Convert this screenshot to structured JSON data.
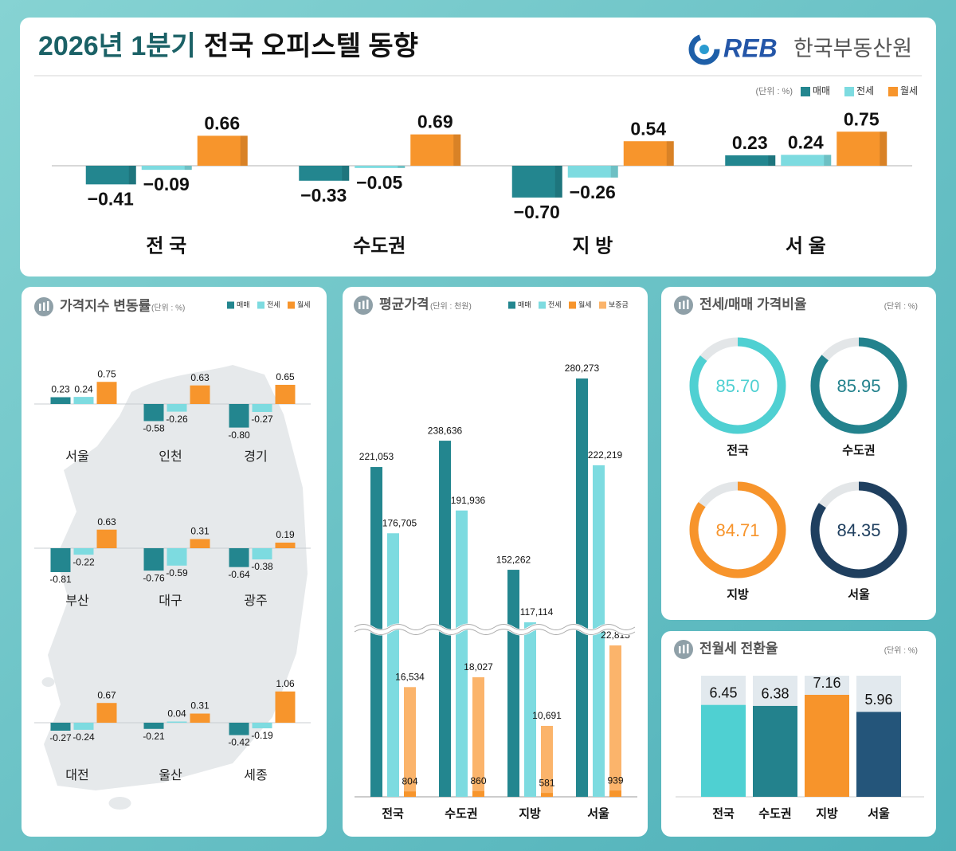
{
  "header": {
    "title_year": "2026년 1분기",
    "title": "전국 오피스텔 동향",
    "logo": "REB",
    "org": "한국부동산원"
  },
  "chart_data": [
    {
      "type": "bar",
      "unit": "(단위 : %)",
      "categories": [
        "전 국",
        "수도권",
        "지 방",
        "서 울"
      ],
      "series": [
        {
          "name": "매매",
          "color": "#23868f",
          "values": [
            -0.41,
            -0.33,
            -0.7,
            0.23
          ],
          "value_labels": [
            "−0.41",
            "−0.33",
            "−0.70",
            "0.23"
          ]
        },
        {
          "name": "전세",
          "color": "#7ddbe0",
          "values": [
            -0.09,
            -0.05,
            -0.26,
            0.24
          ],
          "value_labels": [
            "−0.09",
            "−0.05",
            "−0.26",
            "0.24"
          ]
        },
        {
          "name": "월세",
          "color": "#f7952c",
          "values": [
            0.66,
            0.69,
            0.54,
            0.75
          ],
          "value_labels": [
            "0.66",
            "0.69",
            "0.54",
            "0.75"
          ]
        }
      ]
    },
    {
      "type": "bar-grid",
      "title": "가격지수 변동률",
      "unit": "(단위 : %)",
      "categories": [
        "서울",
        "인천",
        "경기",
        "부산",
        "대구",
        "광주",
        "대전",
        "울산",
        "세종"
      ],
      "series": [
        {
          "name": "매매",
          "color": "#23868f",
          "values": [
            0.23,
            -0.58,
            -0.8,
            -0.81,
            -0.76,
            -0.64,
            -0.27,
            -0.21,
            -0.42
          ],
          "value_labels": [
            "0.23",
            "-0.58",
            "-0.80",
            "-0.81",
            "-0.76",
            "-0.64",
            "-0.27",
            "-0.21",
            "-0.42"
          ]
        },
        {
          "name": "전세",
          "color": "#7ddbe0",
          "values": [
            0.24,
            -0.26,
            -0.27,
            -0.22,
            -0.59,
            -0.38,
            -0.24,
            0.04,
            -0.19
          ],
          "value_labels": [
            "0.24",
            "-0.26",
            "-0.27",
            "-0.22",
            "-0.59",
            "-0.38",
            "-0.24",
            "0.04",
            "-0.19"
          ]
        },
        {
          "name": "월세",
          "color": "#f7952c",
          "values": [
            0.75,
            0.63,
            0.65,
            0.63,
            0.31,
            0.19,
            0.67,
            0.31,
            1.06
          ],
          "value_labels": [
            "0.75",
            "0.63",
            "0.65",
            "0.63",
            "0.31",
            "0.19",
            "0.67",
            "0.31",
            "1.06"
          ]
        }
      ]
    },
    {
      "type": "broken-bar",
      "title": "평균가격",
      "unit": "(단위 : 천원)",
      "categories": [
        "전국",
        "수도권",
        "지방",
        "서울"
      ],
      "series": [
        {
          "name": "매매",
          "color": "#23868f",
          "values": [
            221053,
            238636,
            152262,
            280273
          ],
          "value_labels": [
            "221,053",
            "238,636",
            "152,262",
            "280,273"
          ]
        },
        {
          "name": "전세",
          "color": "#7ddbe0",
          "values": [
            176705,
            191936,
            117114,
            222219
          ],
          "value_labels": [
            "176,705",
            "191,936",
            "117,114",
            "222,219"
          ]
        },
        {
          "name": "월세",
          "color": "#f7952c",
          "values": [
            804,
            860,
            581,
            939
          ]
        },
        {
          "name": "보증금",
          "color": "#fbb46b",
          "values": [
            16534,
            18027,
            10691,
            22815
          ],
          "value_labels": [
            "16,534",
            "18,027",
            "10,691",
            "22,815"
          ]
        }
      ]
    },
    {
      "type": "donut",
      "title": "전세/매매 가격비율",
      "unit": "(단위 : %)",
      "categories": [
        "전국",
        "수도권",
        "지방",
        "서울"
      ],
      "values": [
        85.7,
        85.95,
        84.71,
        84.35
      ],
      "value_labels": [
        "85.70",
        "85.95",
        "84.71",
        "84.35"
      ],
      "colors": [
        "#4fd0d2",
        "#23828d",
        "#f7942b",
        "#1f3f5f"
      ]
    },
    {
      "type": "column",
      "title": "전월세 전환율",
      "unit": "(단위 : %)",
      "categories": [
        "전국",
        "수도권",
        "지방",
        "서울"
      ],
      "values": [
        6.45,
        6.38,
        7.16,
        5.96
      ],
      "colors": [
        "#4fd0d2",
        "#23828d",
        "#f7942b",
        "#24557a"
      ]
    }
  ]
}
